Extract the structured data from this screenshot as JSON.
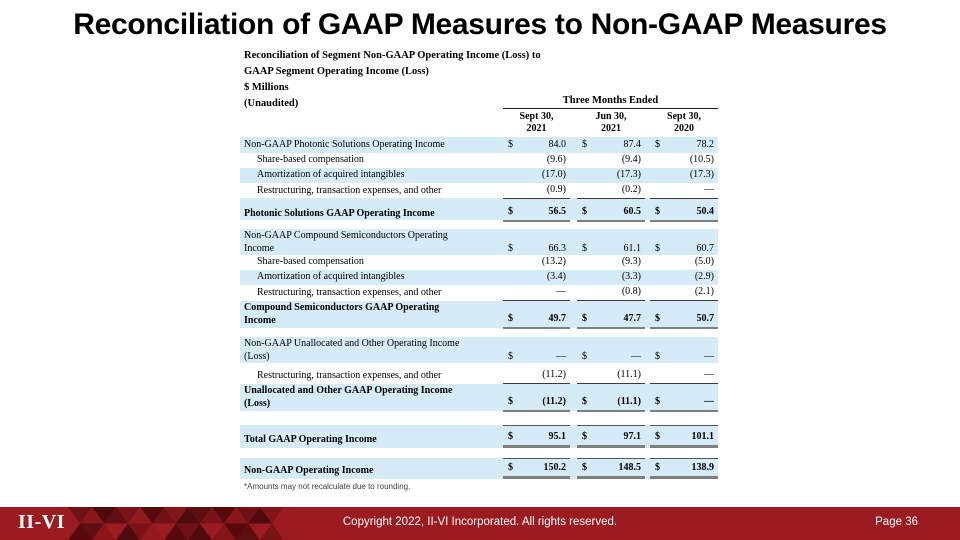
{
  "slide": {
    "title": "Reconciliation of GAAP Measures to Non-GAAP Measures"
  },
  "colors": {
    "row_highlight": "#D5EBF7",
    "footer_bar": "#9C1B20",
    "total_rule": "#7f7f7f"
  },
  "table": {
    "heading_lines": [
      "Reconciliation of Segment Non-GAAP Operating Income (Loss) to",
      "GAAP Segment Operating Income (Loss)",
      "$ Millions",
      "(Unaudited)"
    ],
    "period_header": "Three Months Ended",
    "currency_symbol": "$",
    "columns": [
      {
        "line1": "Sept 30,",
        "line2": "2021"
      },
      {
        "line1": "Jun 30,",
        "line2": "2021"
      },
      {
        "line1": "Sept 30,",
        "line2": "2020"
      }
    ],
    "rows": [
      {
        "type": "data",
        "label": "Non-GAAP Photonic Solutions Operating Income",
        "bg": "blue",
        "dollar": true,
        "values": [
          "84.0",
          "87.4",
          "78.2"
        ],
        "h": 16
      },
      {
        "type": "data",
        "label": "Share-based compensation",
        "indent": true,
        "bg": "white",
        "values": [
          "(9.6)",
          "(9.4)",
          "(10.5)"
        ],
        "h": 15
      },
      {
        "type": "data",
        "label": "Amortization of acquired intangibles",
        "indent": true,
        "bg": "blue",
        "values": [
          "(17.0)",
          "(17.3)",
          "(17.3)"
        ],
        "h": 15
      },
      {
        "type": "data",
        "label": "Restructuring, transaction expenses, and other",
        "indent": true,
        "bg": "white",
        "values": [
          "(0.9)",
          "(0.2)",
          "—"
        ],
        "rule": "single",
        "h": 15
      },
      {
        "type": "spacer",
        "bg": "blue",
        "h": 7
      },
      {
        "type": "data",
        "label": "Photonic Solutions GAAP Operating Income",
        "bold": true,
        "bg": "blue",
        "dollar": true,
        "values": [
          "56.5",
          "60.5",
          "50.4"
        ],
        "rule": "total",
        "h": 15
      },
      {
        "type": "spacer",
        "bg": "white",
        "h": 9
      },
      {
        "type": "data",
        "label": "Non-GAAP Compound Semiconductors Operating",
        "label2": "Income",
        "bg": "blue",
        "dollar": true,
        "values": [
          "66.3",
          "61.1",
          "60.7"
        ],
        "h": 26
      },
      {
        "type": "data",
        "label": "Share-based compensation",
        "indent": true,
        "bg": "white",
        "values": [
          "(13.2)",
          "(9.3)",
          "(5.0)"
        ],
        "h": 15
      },
      {
        "type": "data",
        "label": "Amortization of acquired intangibles",
        "indent": true,
        "bg": "blue",
        "values": [
          "(3.4)",
          "(3.3)",
          "(2.9)"
        ],
        "h": 15
      },
      {
        "type": "data",
        "label": "Restructuring, transaction expenses, and other",
        "indent": true,
        "bg": "white",
        "values": [
          "—",
          "(0.8)",
          "(2.1)"
        ],
        "rule": "single",
        "h": 16
      },
      {
        "type": "data",
        "label": "Compound Semiconductors GAAP Operating",
        "label2": "Income",
        "bold": true,
        "bg": "blue",
        "dollar": true,
        "values": [
          "49.7",
          "47.7",
          "50.7"
        ],
        "rule": "total",
        "h": 27
      },
      {
        "type": "spacer",
        "bg": "white",
        "h": 9
      },
      {
        "type": "data",
        "label": "Non-GAAP Unallocated and Other Operating Income",
        "label2": "(Loss)",
        "bg": "blue",
        "dollar": true,
        "values": [
          "—",
          "—",
          "—"
        ],
        "h": 26
      },
      {
        "type": "spacer",
        "bg": "white",
        "h": 5
      },
      {
        "type": "data",
        "label": "Restructuring, transaction expenses, and other",
        "indent": true,
        "bg": "white",
        "values": [
          "(11.2)",
          "(11.1)",
          "—"
        ],
        "rule": "single",
        "h": 16
      },
      {
        "type": "data",
        "label": "Unallocated and Other GAAP Operating Income",
        "label2": "(Loss)",
        "bold": true,
        "bg": "blue",
        "dollar": true,
        "values": [
          "(11.2)",
          "(11.1)",
          "—"
        ],
        "rule": "total",
        "h": 27
      },
      {
        "type": "spacer",
        "bg": "white",
        "h": 14
      },
      {
        "type": "data",
        "label": "Total GAAP Operating Income",
        "bold": true,
        "bg": "blue",
        "dollar": true,
        "values": [
          "95.1",
          "97.1",
          "101.1"
        ],
        "rule": "grand",
        "h": 23
      },
      {
        "type": "spacer",
        "bg": "white",
        "h": 10
      },
      {
        "type": "data",
        "label": "Non-GAAP Operating Income",
        "bold": true,
        "bg": "blue",
        "dollar": true,
        "values": [
          "150.2",
          "148.5",
          "138.9"
        ],
        "rule": "grand",
        "h": 21
      }
    ],
    "footnote": "*Amounts may not recalculate due to rounding."
  },
  "footer": {
    "logo": "II-VI",
    "copyright": "Copyright 2022, II-VI Incorporated. All rights reserved.",
    "page": "Page 36"
  }
}
